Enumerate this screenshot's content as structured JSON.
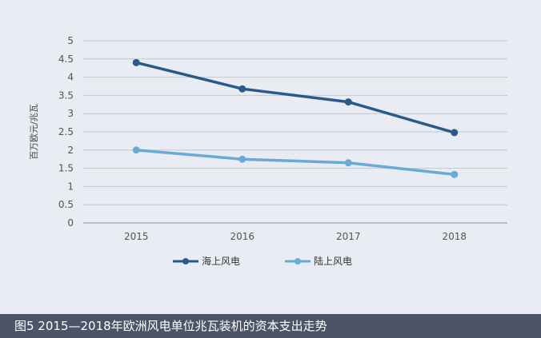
{
  "chart_data": {
    "type": "line",
    "title": "",
    "xlabel": "",
    "ylabel": "百万欧元/兆瓦",
    "categories": [
      "2015",
      "2016",
      "2017",
      "2018"
    ],
    "ylim": [
      0,
      5
    ],
    "yticks": [
      "0",
      "0.5",
      "1",
      "1.5",
      "2",
      "2.5",
      "3",
      "3.5",
      "4",
      "4.5",
      "5"
    ],
    "grid": true,
    "legend_position": "bottom",
    "series": [
      {
        "name": "海上风电",
        "color": "#2a5a8c",
        "values": [
          4.4,
          3.68,
          3.32,
          2.48
        ]
      },
      {
        "name": "陆上风电",
        "color": "#6aaad6",
        "values": [
          2.0,
          1.75,
          1.65,
          1.33
        ]
      }
    ]
  },
  "caption": "图5 2015—2018年欧洲风电单位兆瓦装机的资本支出走势"
}
